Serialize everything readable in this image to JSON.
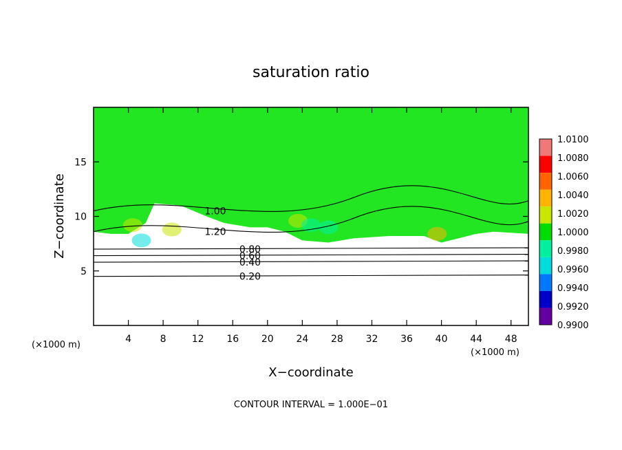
{
  "chart_data": {
    "type": "heatmap",
    "title": "saturation ratio",
    "xlabel": "X−coordinate",
    "ylabel": "Z−coordinate",
    "x_unit": "(×1000 m)",
    "y_unit": "(×1000 m)",
    "xlim": [
      0,
      50
    ],
    "ylim": [
      0,
      20
    ],
    "x_ticks": [
      4,
      8,
      12,
      16,
      20,
      24,
      28,
      32,
      36,
      40,
      44,
      48
    ],
    "x_tick_labels": [
      "4",
      "8",
      "12",
      "16",
      "20",
      "24",
      "28",
      "32",
      "36",
      "40",
      "44",
      "48"
    ],
    "y_ticks": [
      5,
      10,
      15
    ],
    "y_tick_labels": [
      "5",
      "10",
      "15"
    ],
    "colorbar": {
      "labels": [
        "1.0100",
        "1.0080",
        "1.0060",
        "1.0040",
        "1.0020",
        "1.0000",
        "0.9980",
        "0.9960",
        "0.9940",
        "0.9920",
        "0.9900"
      ],
      "colors": [
        "#f07878",
        "#ff0000",
        "#ff6400",
        "#ffb400",
        "#c8e600",
        "#00dc00",
        "#00f0a0",
        "#00dcdc",
        "#0078ff",
        "#0000c8",
        "#6400a0"
      ]
    },
    "background_field_color": "#22e622",
    "contour_lines": [
      {
        "label": "0.20",
        "z": 4.5
      },
      {
        "label": "0.40",
        "z": 5.8
      },
      {
        "label": "0.60",
        "z": 6.4
      },
      {
        "label": "0.80",
        "z": 7.0
      },
      {
        "label": "1.20",
        "z": 8.6
      },
      {
        "label": "1.00",
        "z": 10.5
      }
    ],
    "contour_interval_text": "CONTOUR INTERVAL = 1.000E−01"
  }
}
